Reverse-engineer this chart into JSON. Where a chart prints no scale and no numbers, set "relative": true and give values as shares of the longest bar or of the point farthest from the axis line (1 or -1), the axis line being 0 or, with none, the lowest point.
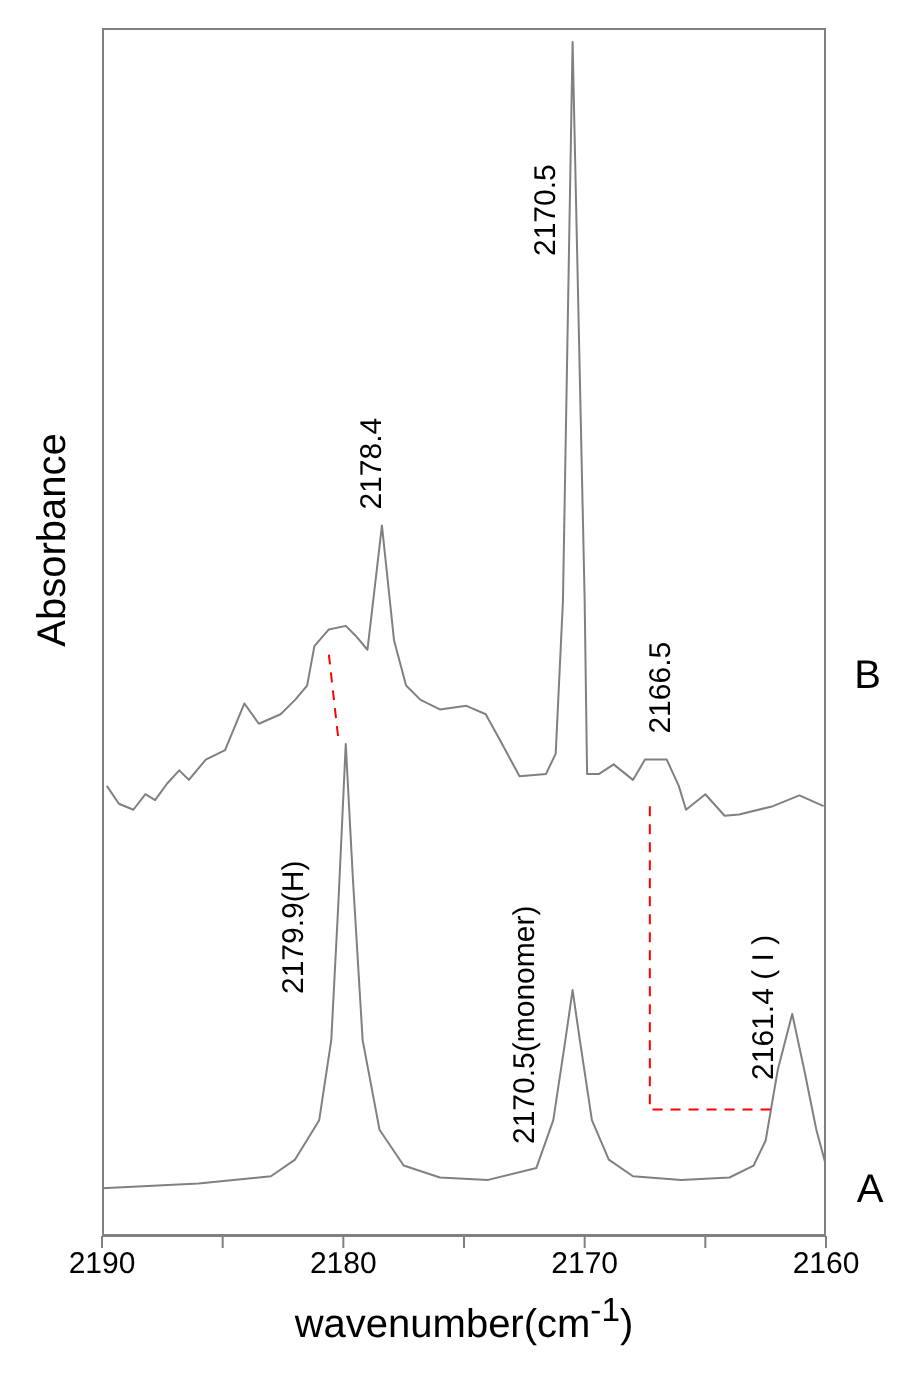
{
  "chart_data": {
    "type": "line",
    "relative": true,
    "xlabel": "wavenumber(cm$^{-1}$)",
    "ylabel": "Absorbance",
    "xlim": [
      2190,
      2160
    ],
    "xticks": [
      2190,
      {
        "value": 2185,
        "label": null
      },
      2180,
      {
        "value": 2175,
        "label": null
      },
      2170,
      {
        "value": 2165,
        "label": null
      },
      2160
    ],
    "marker": "none",
    "series": [
      {
        "name": "B",
        "color": "#808080",
        "x": [
          2189.8,
          2189.3,
          2188.7,
          2188.2,
          2187.8,
          2187.3,
          2186.8,
          2186.4,
          2185.7,
          2184.9,
          2184.1,
          2183.5,
          2182.6,
          2182.0,
          2181.5,
          2181.2,
          2180.6,
          2179.9,
          2179.5,
          2179.0,
          2178.4,
          2177.9,
          2177.4,
          2176.8,
          2176.0,
          2174.9,
          2174.1,
          2173.5,
          2172.7,
          2171.6,
          2171.2,
          2170.9,
          2170.5,
          2170.0,
          2169.9,
          2169.4,
          2168.8,
          2168.0,
          2167.5,
          2166.6,
          2166.1,
          2165.8,
          2165.0,
          2164.2,
          2163.6,
          2162.2,
          2161.1,
          2160.1
        ],
        "values": [
          0.377,
          0.362,
          0.357,
          0.37,
          0.365,
          0.379,
          0.39,
          0.382,
          0.399,
          0.407,
          0.446,
          0.429,
          0.437,
          0.449,
          0.461,
          0.494,
          0.508,
          0.511,
          0.503,
          0.491,
          0.595,
          0.499,
          0.461,
          0.449,
          0.441,
          0.444,
          0.437,
          0.415,
          0.385,
          0.387,
          0.404,
          0.532,
          1,
          0.532,
          0.387,
          0.387,
          0.395,
          0.382,
          0.399,
          0.399,
          0.377,
          0.357,
          0.37,
          0.352,
          0.353,
          0.36,
          0.369,
          0.36
        ]
      },
      {
        "name": "A",
        "color": "#808080",
        "x": [
          2190,
          2186,
          2183,
          2182,
          2181,
          2180.5,
          2180.2,
          2179.9,
          2179.6,
          2179.2,
          2178.5,
          2177.5,
          2176,
          2174,
          2172,
          2171.3,
          2170.8,
          2170.5,
          2170.2,
          2169.7,
          2169,
          2168,
          2166,
          2164,
          2163,
          2162.5,
          2162,
          2161.4,
          2160.9,
          2160.4,
          2160
        ],
        "values": [
          0.04,
          0.044,
          0.05,
          0.064,
          0.097,
          0.164,
          0.281,
          0.412,
          0.298,
          0.164,
          0.089,
          0.059,
          0.049,
          0.047,
          0.057,
          0.097,
          0.164,
          0.206,
          0.164,
          0.097,
          0.064,
          0.05,
          0.047,
          0.049,
          0.059,
          0.08,
          0.139,
          0.186,
          0.139,
          0.089,
          0.059
        ]
      },
      {
        "type": "line",
        "color": "#ff0000",
        "line_style": "dashed",
        "x": [
          2180.6,
          2180.2
        ],
        "values": [
          0.487,
          0.415
        ]
      },
      {
        "type": "line",
        "color": "#ff0000",
        "line_style": "dashed",
        "x": [
          2167.3,
          2167.3,
          2162.1
        ],
        "values": [
          0.36,
          0.106,
          0.106
        ]
      }
    ],
    "annotations": [
      "2170.5",
      {
        "text": "2178.4",
        "x": 2178.4,
        "y": 0.595
      },
      {
        "text": "2166.5",
        "x": 2166.6,
        "y": 0.399
      },
      "2179.9(H)",
      {
        "text": "2170.5(monomer)",
        "x": 2170.5,
        "y": 0.206
      },
      {
        "text": "2161.4 ( I )",
        "x": 2161.4,
        "y": 0.186
      }
    ]
  }
}
